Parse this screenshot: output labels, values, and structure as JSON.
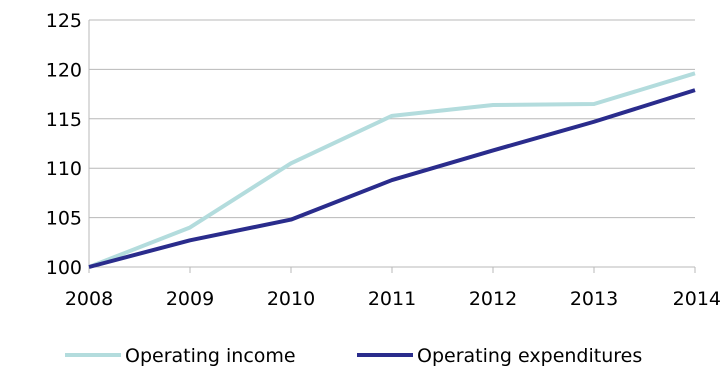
{
  "chart_data": {
    "type": "line",
    "title": "",
    "xlabel": "",
    "ylabel": "",
    "x": [
      "2008",
      "2009",
      "2010",
      "2011",
      "2012",
      "2013",
      "2014"
    ],
    "ylim": [
      100,
      125
    ],
    "yticks": [
      100,
      105,
      110,
      115,
      120,
      125
    ],
    "grid": true,
    "legend_position": "bottom",
    "series": [
      {
        "name": "Operating income",
        "color": "#b3dcdd",
        "values": [
          100.0,
          104.0,
          110.5,
          115.3,
          116.4,
          116.5,
          119.6
        ]
      },
      {
        "name": "Operating expenditures",
        "color": "#2a2c8c",
        "values": [
          100.0,
          102.7,
          104.8,
          108.8,
          111.8,
          114.7,
          117.9
        ]
      }
    ]
  }
}
